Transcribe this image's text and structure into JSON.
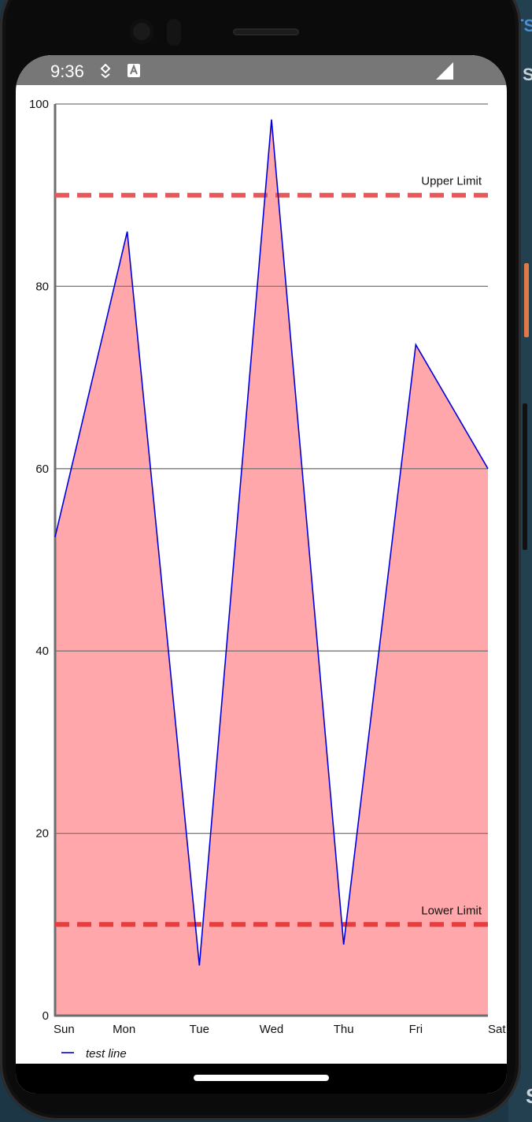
{
  "status_bar": {
    "time": "9:36",
    "icons": [
      "download-status-icon",
      "keyboard-a-icon",
      "signal-icon"
    ]
  },
  "background_app": {
    "fragments": [
      "TS",
      "S",
      "S"
    ]
  },
  "chart_data": {
    "type": "area",
    "categories": [
      "Sun",
      "Mon",
      "Tue",
      "Wed",
      "Thu",
      "Fri",
      "Sat"
    ],
    "series": [
      {
        "name": "test line",
        "values": [
          52.5,
          86,
          5.5,
          98.3,
          7.8,
          73.6,
          60
        ],
        "line_color": "#0000dd",
        "fill_color": "#ffa7aa"
      }
    ],
    "ylim": [
      0,
      100
    ],
    "yticks": [
      0,
      20,
      40,
      60,
      80,
      100
    ],
    "grid": true,
    "limit_lines": [
      {
        "label": "Upper Limit",
        "value": 90,
        "color": "#e8585a"
      },
      {
        "label": "Lower Limit",
        "value": 10,
        "color": "#ea3b3d"
      }
    ],
    "legend_position": "bottom-left"
  }
}
